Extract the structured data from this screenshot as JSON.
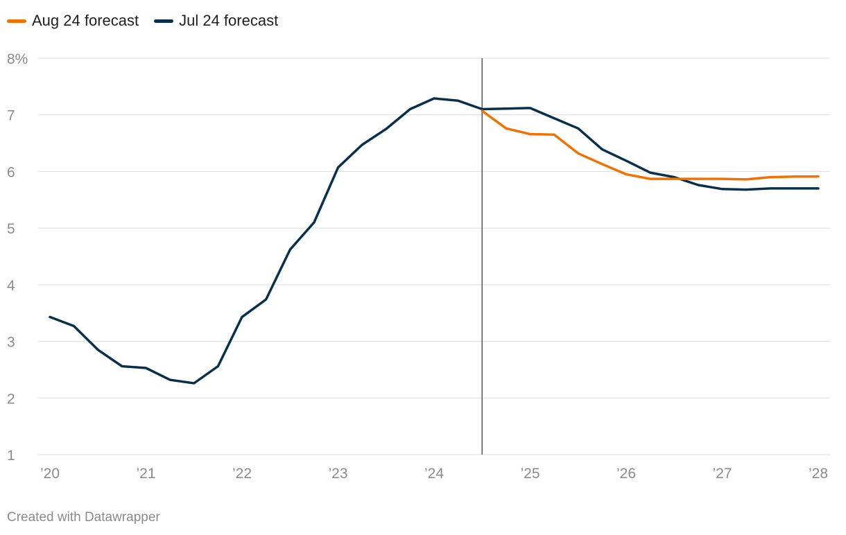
{
  "legend": {
    "items": [
      {
        "label": "Aug 24 forecast",
        "color": "#f27200"
      },
      {
        "label": "Jul 24 forecast",
        "color": "#08304a"
      }
    ]
  },
  "credit": "Created with Datawrapper",
  "chart_data": {
    "type": "line",
    "title": "",
    "xlabel": "",
    "ylabel": "",
    "x_ticks": [
      {
        "value": 2020,
        "label": "’20"
      },
      {
        "value": 2021,
        "label": "’21"
      },
      {
        "value": 2022,
        "label": "’22"
      },
      {
        "value": 2023,
        "label": "’23"
      },
      {
        "value": 2024,
        "label": "’24"
      },
      {
        "value": 2025,
        "label": "’25"
      },
      {
        "value": 2026,
        "label": "’26"
      },
      {
        "value": 2027,
        "label": "’27"
      },
      {
        "value": 2028,
        "label": "’28"
      }
    ],
    "y_ticks": [
      {
        "value": 1,
        "label": "1"
      },
      {
        "value": 2,
        "label": "2"
      },
      {
        "value": 3,
        "label": "3"
      },
      {
        "value": 4,
        "label": "4"
      },
      {
        "value": 5,
        "label": "5"
      },
      {
        "value": 6,
        "label": "6"
      },
      {
        "value": 7,
        "label": "7"
      },
      {
        "value": 8,
        "label": "8%"
      }
    ],
    "xlim": [
      2020,
      2028
    ],
    "ylim": [
      1,
      8
    ],
    "grid": "horizontal",
    "legend_position": "top-left",
    "reference_line_x": 2024.5,
    "series": [
      {
        "name": "Jul 24 forecast",
        "color": "#08304a",
        "x": [
          2020,
          2020.25,
          2020.5,
          2020.75,
          2021,
          2021.25,
          2021.5,
          2021.75,
          2022,
          2022.25,
          2022.5,
          2022.75,
          2023,
          2023.25,
          2023.5,
          2023.75,
          2024,
          2024.25,
          2024.5,
          2024.75,
          2025,
          2025.25,
          2025.5,
          2025.75,
          2026,
          2026.25,
          2026.5,
          2026.75,
          2027,
          2027.25,
          2027.5,
          2027.75,
          2028
        ],
        "y": [
          3.43,
          3.27,
          2.85,
          2.56,
          2.53,
          2.32,
          2.26,
          2.56,
          3.43,
          3.74,
          4.62,
          5.1,
          6.07,
          6.47,
          6.75,
          7.1,
          7.29,
          7.25,
          7.1,
          7.11,
          7.12,
          6.94,
          6.76,
          6.39,
          6.19,
          5.98,
          5.9,
          5.76,
          5.69,
          5.68,
          5.7,
          5.7,
          5.7
        ]
      },
      {
        "name": "Aug 24 forecast",
        "color": "#f27200",
        "x": [
          2024.5,
          2024.75,
          2025,
          2025.25,
          2025.5,
          2025.75,
          2026,
          2026.25,
          2026.5,
          2026.75,
          2027,
          2027.25,
          2027.5,
          2027.75,
          2028
        ],
        "y": [
          7.07,
          6.76,
          6.66,
          6.65,
          6.32,
          6.13,
          5.95,
          5.87,
          5.87,
          5.87,
          5.87,
          5.86,
          5.9,
          5.91,
          5.91
        ]
      }
    ]
  }
}
